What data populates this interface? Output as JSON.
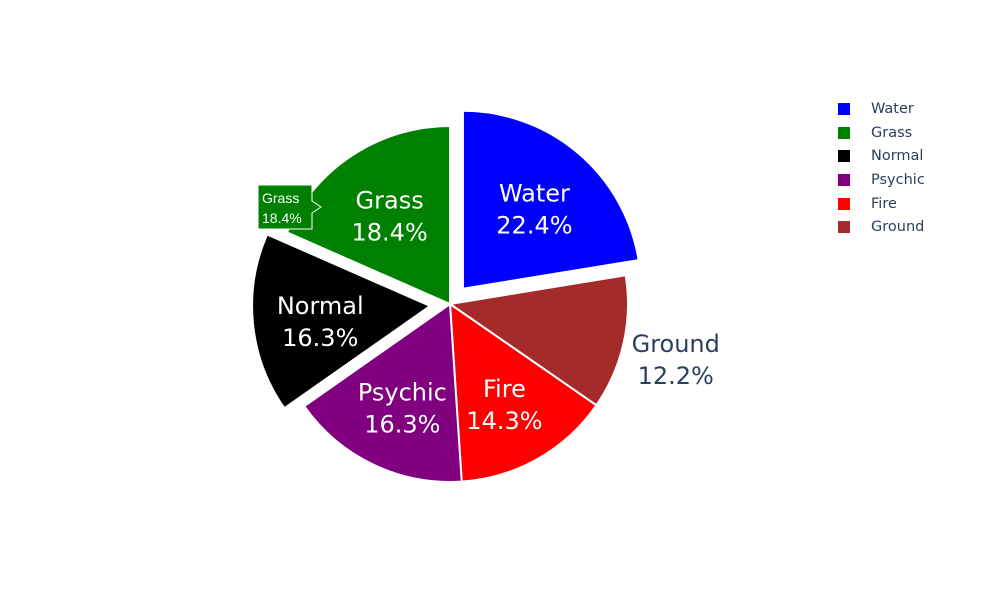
{
  "chart_data": {
    "type": "pie",
    "slices": [
      {
        "label": "Water",
        "value": 22.4,
        "text": "22.4%",
        "color": "#0000ff",
        "pull": true
      },
      {
        "label": "Ground",
        "value": 12.2,
        "text": "12.2%",
        "color": "#a52a2a",
        "pull": false
      },
      {
        "label": "Fire",
        "value": 14.3,
        "text": "14.3%",
        "color": "#ff0000",
        "pull": false
      },
      {
        "label": "Psychic",
        "value": 16.3,
        "text": "16.3%",
        "color": "#800080",
        "pull": false
      },
      {
        "label": "Normal",
        "value": 16.3,
        "text": "16.3%",
        "color": "#000000",
        "pull": true
      },
      {
        "label": "Grass",
        "value": 18.4,
        "text": "18.4%",
        "color": "#008000",
        "pull": false
      }
    ],
    "legend": {
      "placement": "top-right",
      "entries": [
        "Water",
        "Grass",
        "Normal",
        "Psychic",
        "Fire",
        "Ground"
      ]
    },
    "hover_tooltip": {
      "slice": "Grass",
      "label": "Grass",
      "text": "18.4%"
    }
  }
}
